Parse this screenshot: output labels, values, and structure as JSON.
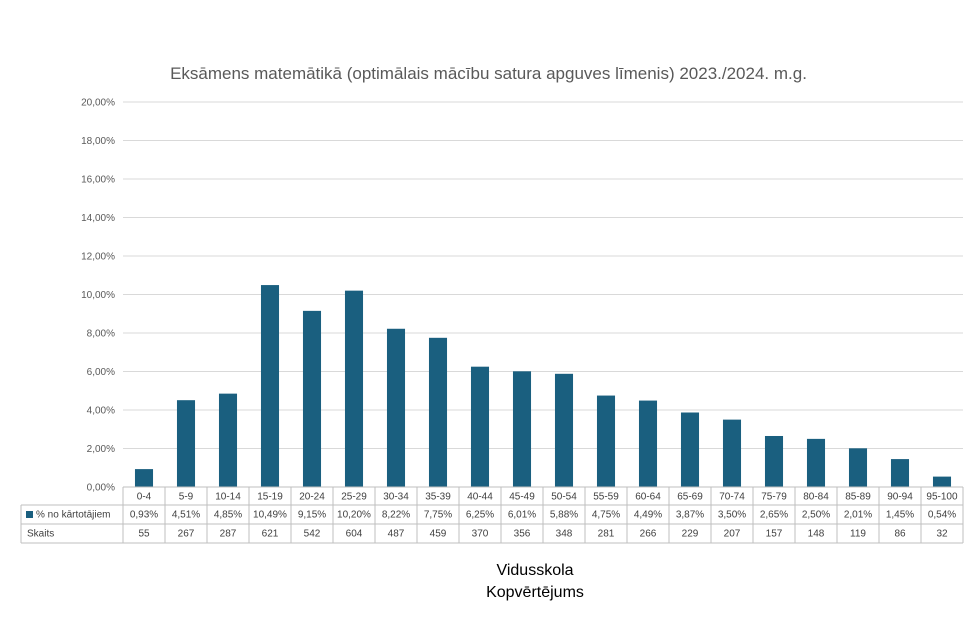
{
  "chart_data": {
    "type": "bar",
    "title": "Eksāmens matemātikā (optimālais mācību satura apguves līmenis) 2023./2024. m.g.",
    "categories": [
      "0-4",
      "5-9",
      "10-14",
      "15-19",
      "20-24",
      "25-29",
      "30-34",
      "35-39",
      "40-44",
      "45-49",
      "50-54",
      "55-59",
      "60-64",
      "65-69",
      "70-74",
      "75-79",
      "80-84",
      "85-89",
      "90-94",
      "95-100"
    ],
    "series": [
      {
        "name": "% no kārtotājiem",
        "values": [
          0.93,
          4.51,
          4.85,
          10.49,
          9.15,
          10.2,
          8.22,
          7.75,
          6.25,
          6.01,
          5.88,
          4.75,
          4.49,
          3.87,
          3.5,
          2.65,
          2.5,
          2.01,
          1.45,
          0.54
        ],
        "labels": [
          "0,93%",
          "4,51%",
          "4,85%",
          "10,49%",
          "9,15%",
          "10,20%",
          "8,22%",
          "7,75%",
          "6,25%",
          "6,01%",
          "5,88%",
          "4,75%",
          "4,49%",
          "3,87%",
          "3,50%",
          "2,65%",
          "2,50%",
          "2,01%",
          "1,45%",
          "0,54%"
        ],
        "color": "#1a5f7f"
      }
    ],
    "table_rows": [
      {
        "name": "Skaits",
        "values": [
          "55",
          "267",
          "287",
          "621",
          "542",
          "604",
          "487",
          "459",
          "370",
          "356",
          "348",
          "281",
          "266",
          "229",
          "207",
          "157",
          "148",
          "119",
          "86",
          "32"
        ]
      }
    ],
    "ylim": [
      0,
      20
    ],
    "yticks": [
      "0,00%",
      "2,00%",
      "4,00%",
      "6,00%",
      "8,00%",
      "10,00%",
      "12,00%",
      "14,00%",
      "16,00%",
      "18,00%",
      "20,00%"
    ],
    "xlabel_lines": [
      "Vidusskola",
      "Kopvērtējums"
    ],
    "grid": true,
    "legend": "data-table"
  }
}
